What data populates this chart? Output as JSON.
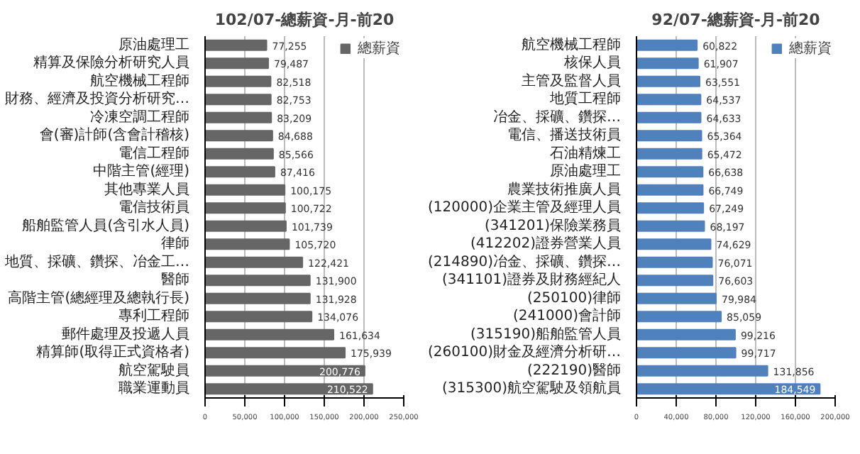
{
  "chart_data": [
    {
      "type": "bar",
      "orientation": "horizontal",
      "title": "102/07-總薪資-月-前20",
      "categories": [
        "原油處理工",
        "精算及保險分析研究人員",
        "航空機械工程師",
        "財務、經濟及投資分析研究…",
        "冷凍空調工程師",
        "會(審)計師(含會計稽核)",
        "電信工程師",
        "中階主管(經理)",
        "其他專業人員",
        "電信技術員",
        "船舶監管人員(含引水人員)",
        "律師",
        "地質、採礦、鑽探、冶金工…",
        "醫師",
        "高階主管(總經理及總執行長)",
        "專利工程師",
        "郵件處理及投遞人員",
        "精算師(取得正式資格者)",
        "航空駕駛員",
        "職業運動員"
      ],
      "series": [
        {
          "name": "總薪資",
          "color": "#666666",
          "values": [
            77255,
            79487,
            82518,
            82753,
            83209,
            84688,
            85566,
            87416,
            100175,
            100722,
            101739,
            105720,
            122421,
            131900,
            131928,
            134076,
            161634,
            175939,
            200776,
            210522
          ],
          "value_labels": [
            "77,255",
            "79,487",
            "82,518",
            "82,753",
            "83,209",
            "84,688",
            "85,566",
            "87,416",
            "100,175",
            "100,722",
            "101,739",
            "105,720",
            "122,421",
            "131,900",
            "131,928",
            "134,076",
            "161,634",
            "175,939",
            "200,776",
            "210,522"
          ]
        }
      ],
      "xlim": [
        0,
        250000
      ],
      "xticks": [
        0,
        {
          "value": 50000,
          "label": "50,000"
        },
        {
          "value": 100000,
          "label": "100,000"
        },
        {
          "value": 150000,
          "label": "150,000"
        },
        {
          "value": 200000,
          "label": "200,000"
        },
        {
          "value": 250000,
          "label": "250,000"
        }
      ],
      "grid": "x",
      "legend": "top right"
    },
    {
      "type": "bar",
      "orientation": "horizontal",
      "title": "92/07-總薪資-月-前20",
      "categories": [
        "航空機械工程師",
        "核保人員",
        "主管及監督人員",
        "地質工程師",
        "冶金、採礦、鑽探…",
        "電信、播送技術員",
        "石油精煉工",
        "原油處理工",
        "農業技術推廣人員",
        "(120000)企業主管及經理人員",
        "(341201)保險業務員",
        "(412202)證券營業人員",
        "(214890)冶金、採礦、鑽探…",
        "(341101)證券及財務經紀人",
        "(250100)律師",
        "(241000)會計師",
        "(315190)船舶監管人員",
        "(260100)財金及經濟分析研…",
        "(222190)醫師",
        "(315300)航空駕駛及領航員"
      ],
      "series": [
        {
          "name": "總薪資",
          "color": "#4f81bd",
          "values": [
            60822,
            61907,
            63551,
            64537,
            64633,
            65364,
            65472,
            66638,
            66749,
            67249,
            68197,
            74629,
            76071,
            76603,
            79984,
            85059,
            99216,
            99717,
            131856,
            184549
          ],
          "value_labels": [
            "60,822",
            "61,907",
            "63,551",
            "64,537",
            "64,633",
            "65,364",
            "65,472",
            "66,638",
            "66,749",
            "67,249",
            "68,197",
            "74,629",
            "76,071",
            "76,603",
            "79,984",
            "85,059",
            "99,216",
            "99,717",
            "131,856",
            "184,549"
          ]
        }
      ],
      "xlim": [
        0,
        200000
      ],
      "xticks": [
        0,
        {
          "value": 40000,
          "label": "40,000"
        },
        {
          "value": 80000,
          "label": "80,000"
        },
        {
          "value": 120000,
          "label": "120,000"
        },
        {
          "value": 160000,
          "label": "160,000"
        },
        {
          "value": 200000,
          "label": "200,000"
        }
      ],
      "grid": "x",
      "legend": "top right"
    }
  ]
}
